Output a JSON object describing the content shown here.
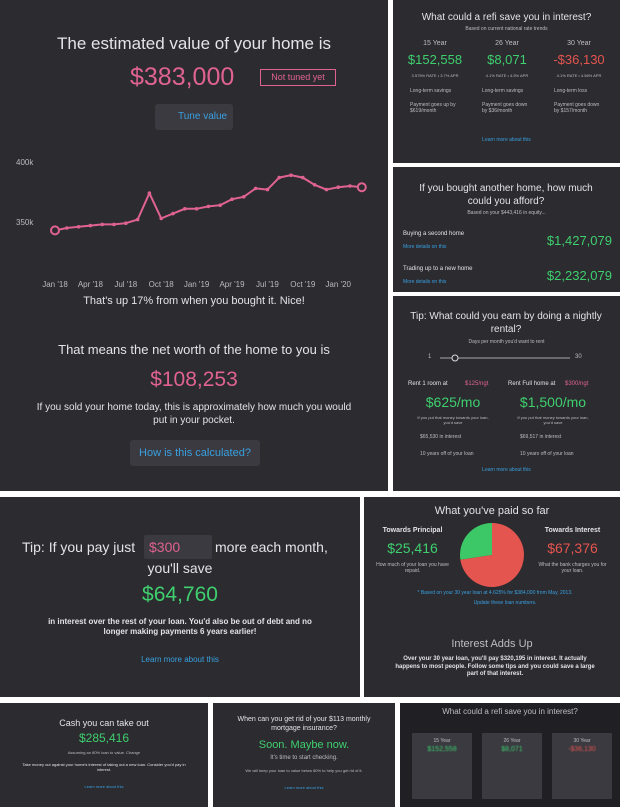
{
  "chart_data": [
    {
      "type": "line",
      "categories": [
        "Jan '18",
        null,
        null,
        "Apr '18",
        null,
        null,
        "Jul '18",
        null,
        null,
        "Oct '18",
        null,
        null,
        "Jan '19",
        null,
        null,
        "Apr '19",
        null,
        null,
        "Jul '19",
        null,
        null,
        "Oct '19",
        null,
        null,
        "Jan '20",
        null,
        null
      ],
      "series": [
        {
          "name": "Home value",
          "color": "#e0638f",
          "values": [
            343,
            345,
            346,
            347,
            348,
            348,
            349,
            352,
            374,
            353,
            357,
            361,
            361,
            363,
            364,
            369,
            371,
            378,
            377,
            387,
            389,
            387,
            381,
            377,
            379,
            380,
            379
          ]
        }
      ],
      "ylim": [
        335,
        410
      ],
      "yticks": [
        {
          "value": 350,
          "label": "350k"
        },
        {
          "value": 400,
          "label": "400k"
        }
      ],
      "grid": false
    },
    {
      "type": "pie",
      "categories": [
        "Towards Principal",
        "Towards Interest"
      ],
      "values": [
        25416,
        67376
      ],
      "value_labels": [
        "$25,416",
        "$67,376"
      ],
      "colors": [
        "#3cc866",
        "#e5554f"
      ]
    }
  ],
  "home": {
    "title": "The estimated value of your home is",
    "value": "$383,000",
    "badge": "Not tuned yet",
    "tune": "Tune value",
    "change": "That's up 17% from when you bought it. Nice!",
    "net_title": "That means the net worth of the home to you is",
    "net_value": "$108,253",
    "net_text": "If you sold your home today, this is approximately how much you would put in your pocket.",
    "net_button": "How is this calculated?"
  },
  "refi": {
    "title": "What could a refi save you in interest?",
    "subtitle": "Based on current national rate trends",
    "columns": [
      {
        "term": "15 Year",
        "value": "$152,558",
        "rate": "3.575% RATE • 3.7% APR",
        "item1": "Long-term savings",
        "item2": "Payment goes up by $619/month"
      },
      {
        "term": "26 Year",
        "value": "$8,071",
        "rate": "4.1% RATE • 4.5% APR",
        "item1": "Long-term savings",
        "item2": "Payment goes down by $36/month"
      },
      {
        "term": "30 Year",
        "value": "-$36,130",
        "rate": "4.1% RATE • 4.56% APR",
        "item1": "Long-term loss",
        "item2": "Payment goes down by $157/month"
      }
    ],
    "link": "Learn more about this"
  },
  "afford": {
    "title": "If you bought another home, how much could you afford?",
    "subtitle": "Based on your $443,416 in equity...",
    "rows": [
      {
        "label": "Buying a second home",
        "link": "More details on this",
        "value": "$1,427,079"
      },
      {
        "label": "Trading up to a new home",
        "link": "More details on this",
        "value": "$2,232,079"
      }
    ]
  },
  "rental": {
    "title": "Tip: What could you earn by doing a nightly rental?",
    "subtitle": "Days per month you'd want to rent",
    "min": "1",
    "max": "30",
    "options": [
      {
        "label": "Rent 1 room at",
        "rate": "$125/ngt",
        "value": "$625/mo",
        "text": "If you put that money towards your loan, you'd save",
        "save": "$65,530 in interest",
        "years": "10 years off of your loan"
      },
      {
        "label": "Rent Full home at",
        "rate": "$300/ngt",
        "value": "$1,500/mo",
        "text": "If you put that money towards your loan, you'd save",
        "save": "$69,517 in interest",
        "years": "10 years off of your loan"
      }
    ],
    "link": "Learn more about this"
  },
  "extra": {
    "lead": "Tip: If you pay just",
    "amount": "$300",
    "tail": "more each month,",
    "tail2": "you'll save",
    "value": "$64,760",
    "text": "in interest over the rest of your loan. You'd also be out of debt and no longer making payments 6 years earlier!",
    "link": "Learn more about this"
  },
  "paid": {
    "title": "What you've paid so far",
    "principal_text": "How much of your loan you have repaid.",
    "interest_text": "What the bank charges you for your loan.",
    "note": "* Based on your 30 year loan at 4.625% for $384,000 from May, 2013.",
    "update": "Update these loan numbers.",
    "adds_title": "Interest Adds Up",
    "adds_text": "Over your 30 year loan, you'll pay $320,195 in interest. It actually happens to most people. Follow some tips and you could save a large part of that interest."
  },
  "cash": {
    "title": "Cash you can take out",
    "value": "$285,416",
    "subtitle": "Assuming an 80% loan to value. Change",
    "text": "Take money out against your home's interest of taking out a new loan. Consider you'd pay in interest.",
    "link": "Learn more about this"
  },
  "pmi": {
    "title": "When can you get rid of your $113 monthly mortgage insurance?",
    "value": "Soon. Maybe now.",
    "subtitle": "It's time to start checking.",
    "text": "We will keep your loan to value below 80% to help you get rid of it.",
    "link": "Learn more about this"
  },
  "refi2": {
    "title": "What could a refi save you in interest?",
    "cards": [
      {
        "term": "15 Year",
        "value": "$152,558"
      },
      {
        "term": "26 Year",
        "value": "$8,071"
      },
      {
        "term": "30 Year",
        "value": "-$36,130"
      }
    ]
  }
}
